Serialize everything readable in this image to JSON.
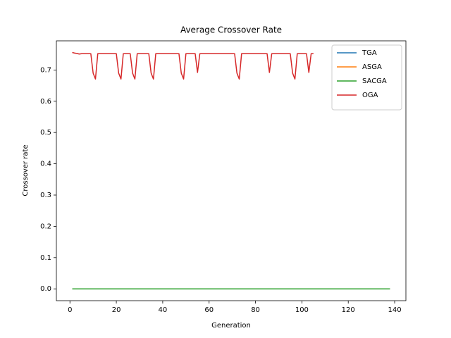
{
  "chart_data": {
    "type": "line",
    "title": "Average Crossover Rate",
    "x_label": "Generation",
    "y_label": "Crossover rate",
    "x": [
      1,
      2,
      3,
      4,
      5,
      6,
      7,
      8,
      9,
      10,
      11,
      12,
      13,
      14,
      15,
      16,
      17,
      18,
      19,
      20,
      21,
      22,
      23,
      24,
      25,
      26,
      27,
      28,
      29,
      30,
      31,
      32,
      33,
      34,
      35,
      36,
      37,
      38,
      39,
      40,
      41,
      42,
      43,
      44,
      45,
      46,
      47,
      48,
      49,
      50,
      51,
      52,
      53,
      54,
      55,
      56,
      57,
      58,
      59,
      60,
      61,
      62,
      63,
      64,
      65,
      66,
      67,
      68,
      69,
      70,
      71,
      72,
      73,
      74,
      75,
      76,
      77,
      78,
      79,
      80,
      81,
      82,
      83,
      84,
      85,
      86,
      87,
      88,
      89,
      90,
      91,
      92,
      93,
      94,
      95,
      96,
      97,
      98,
      99,
      100,
      101,
      102,
      103,
      104,
      105,
      106,
      107,
      108,
      109,
      110,
      111,
      112,
      113,
      114,
      115,
      116,
      117,
      118,
      119,
      120,
      121,
      122,
      123,
      124,
      125,
      126,
      127,
      128,
      129,
      130,
      131,
      132,
      133,
      134,
      135,
      136,
      137,
      138
    ],
    "series": [
      {
        "name": "TGA",
        "color": "#1f77b4",
        "values": [
          0,
          0,
          0,
          0,
          0,
          0,
          0,
          0,
          0,
          0,
          0,
          0,
          0,
          0,
          0,
          0,
          0,
          0,
          0,
          0,
          0,
          0,
          0,
          0,
          0,
          0,
          0,
          0,
          0,
          0,
          0,
          0,
          0,
          0,
          0,
          0,
          0,
          0,
          0,
          0,
          0,
          0,
          0,
          0,
          0,
          0,
          0,
          0,
          0,
          0,
          0,
          0,
          0,
          0,
          0,
          0,
          0,
          0,
          0,
          0,
          0,
          0,
          0,
          0,
          0,
          0,
          0,
          0,
          0,
          0,
          0,
          0,
          0,
          0,
          0,
          0,
          0,
          0,
          0,
          0,
          0,
          0,
          0,
          0,
          0,
          0,
          0,
          0,
          0,
          0,
          0,
          0,
          0,
          0,
          0,
          0,
          0,
          0,
          0,
          0,
          0,
          0,
          0,
          0,
          0,
          0,
          0,
          0,
          0,
          0,
          0,
          0,
          0,
          0,
          0,
          0,
          0,
          0,
          0,
          0,
          0,
          0,
          0,
          0,
          0,
          0,
          0,
          0,
          0,
          0,
          0,
          0,
          0,
          0,
          0,
          0,
          0,
          0
        ]
      },
      {
        "name": "ASGA",
        "color": "#ff7f0e",
        "values": [
          0,
          0,
          0,
          0,
          0,
          0,
          0,
          0,
          0,
          0,
          0,
          0,
          0,
          0,
          0,
          0,
          0,
          0,
          0,
          0,
          0,
          0,
          0,
          0,
          0,
          0,
          0,
          0,
          0,
          0,
          0,
          0,
          0,
          0,
          0,
          0,
          0,
          0,
          0,
          0,
          0,
          0,
          0,
          0,
          0,
          0,
          0,
          0,
          0,
          0,
          0,
          0,
          0,
          0,
          0,
          0,
          0,
          0,
          0,
          0,
          0,
          0,
          0,
          0,
          0,
          0,
          0,
          0,
          0,
          0,
          0,
          0,
          0,
          0,
          0,
          0,
          0,
          0,
          0,
          0,
          0,
          0,
          0,
          0,
          0,
          0,
          0,
          0,
          0,
          0,
          0,
          0,
          0,
          0,
          0,
          0,
          0,
          0,
          0,
          0,
          0,
          0,
          0,
          0,
          0,
          0,
          0,
          0,
          0,
          0,
          0,
          0,
          0,
          0,
          0,
          0,
          0,
          0,
          0,
          0,
          0,
          0,
          0,
          0,
          0,
          0,
          0,
          0,
          0,
          0,
          0,
          0,
          0,
          0,
          0,
          0,
          0,
          0
        ]
      },
      {
        "name": "SACGA",
        "color": "#2ca02c",
        "values": [
          0,
          0,
          0,
          0,
          0,
          0,
          0,
          0,
          0,
          0,
          0,
          0,
          0,
          0,
          0,
          0,
          0,
          0,
          0,
          0,
          0,
          0,
          0,
          0,
          0,
          0,
          0,
          0,
          0,
          0,
          0,
          0,
          0,
          0,
          0,
          0,
          0,
          0,
          0,
          0,
          0,
          0,
          0,
          0,
          0,
          0,
          0,
          0,
          0,
          0,
          0,
          0,
          0,
          0,
          0,
          0,
          0,
          0,
          0,
          0,
          0,
          0,
          0,
          0,
          0,
          0,
          0,
          0,
          0,
          0,
          0,
          0,
          0,
          0,
          0,
          0,
          0,
          0,
          0,
          0,
          0,
          0,
          0,
          0,
          0,
          0,
          0,
          0,
          0,
          0,
          0,
          0,
          0,
          0,
          0,
          0,
          0,
          0,
          0,
          0,
          0,
          0,
          0,
          0,
          0,
          0,
          0,
          0,
          0,
          0,
          0,
          0,
          0,
          0,
          0,
          0,
          0,
          0,
          0,
          0,
          0,
          0,
          0,
          0,
          0,
          0,
          0,
          0,
          0,
          0,
          0,
          0,
          0,
          0,
          0,
          0,
          0,
          0
        ]
      },
      {
        "name": "OGA",
        "color": "#d62728",
        "values": [
          0.756,
          0.754,
          0.753,
          0.751,
          0.752,
          0.752,
          0.752,
          0.752,
          0.752,
          0.69,
          0.671,
          0.752,
          0.752,
          0.752,
          0.752,
          0.752,
          0.752,
          0.752,
          0.752,
          0.752,
          0.69,
          0.671,
          0.752,
          0.752,
          0.752,
          0.752,
          0.69,
          0.671,
          0.752,
          0.752,
          0.752,
          0.752,
          0.752,
          0.752,
          0.69,
          0.671,
          0.752,
          0.752,
          0.752,
          0.752,
          0.752,
          0.752,
          0.752,
          0.752,
          0.752,
          0.752,
          0.752,
          0.69,
          0.671,
          0.752,
          0.752,
          0.752,
          0.752,
          0.752,
          0.692,
          0.752,
          0.752,
          0.752,
          0.752,
          0.752,
          0.752,
          0.752,
          0.752,
          0.752,
          0.752,
          0.752,
          0.752,
          0.752,
          0.752,
          0.752,
          0.752,
          0.69,
          0.671,
          0.752,
          0.752,
          0.752,
          0.752,
          0.752,
          0.752,
          0.752,
          0.752,
          0.752,
          0.752,
          0.752,
          0.752,
          0.692,
          0.752,
          0.752,
          0.752,
          0.752,
          0.752,
          0.752,
          0.752,
          0.752,
          0.752,
          0.69,
          0.671,
          0.752,
          0.752,
          0.752,
          0.752,
          0.752,
          0.692,
          0.752,
          0.752,
          null,
          null,
          null,
          null,
          null,
          null,
          null,
          null,
          null,
          null,
          null,
          null,
          null,
          null,
          null,
          null,
          null,
          null,
          null,
          null,
          null,
          null,
          null,
          null,
          null,
          null,
          null,
          null,
          null,
          null,
          null,
          null,
          null
        ]
      }
    ],
    "xlim": [
      -5.85,
      144.85
    ],
    "ylim": [
      -0.0378,
      0.7932
    ],
    "xticks": [
      0,
      20,
      40,
      60,
      80,
      100,
      120,
      140
    ],
    "yticks": [
      {
        "value": 0,
        "label": "0.0"
      },
      0.1,
      0.2,
      0.3,
      0.4,
      0.5,
      0.6,
      0.7
    ],
    "legend": "upper right"
  }
}
